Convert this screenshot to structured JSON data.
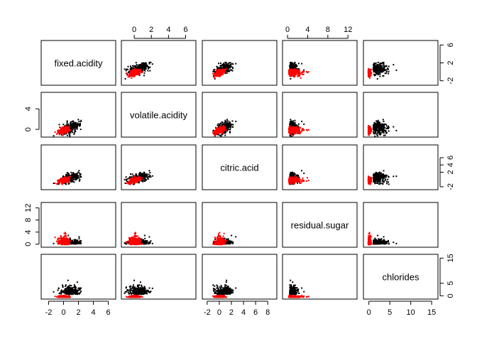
{
  "chart_data": {
    "type": "scatter",
    "variables": [
      "fixed.acidity",
      "volatile.acidity",
      "citric.acid",
      "residual.sugar",
      "chlorides"
    ],
    "ranges": {
      "fixed.acidity": [
        -3.0,
        7.0
      ],
      "volatile.acidity": [
        -1.5,
        7.2
      ],
      "citric.acid": [
        -2.8,
        9.5
      ],
      "residual.sugar": [
        -1.0,
        13.8
      ],
      "chlorides": [
        -1.3,
        16.5
      ]
    },
    "ticks": {
      "fixed.acidity": [
        "-2",
        "0",
        "2",
        "4",
        "6"
      ],
      "volatile.acidity": [
        "0",
        "2",
        "4",
        "6"
      ],
      "citric.acid": [
        "-2",
        "0",
        "2",
        "4",
        "6",
        "8"
      ],
      "residual.sugar": [
        "0",
        "4",
        "8",
        "12"
      ],
      "chlorides": [
        "0",
        "5",
        "10",
        "15"
      ]
    },
    "axes": {
      "bottom": [
        {
          "var": "fixed.acidity",
          "ticks": [
            "-2",
            "0",
            "2",
            "4",
            "6"
          ]
        },
        {
          "var": "citric.acid",
          "ticks": [
            "-2",
            "0",
            "2",
            "4",
            "6",
            "8"
          ]
        },
        {
          "var": "chlorides",
          "ticks": [
            "0",
            "5",
            "10",
            "15"
          ]
        }
      ],
      "top": [
        {
          "var": "volatile.acidity",
          "ticks": [
            "0",
            "2",
            "4",
            "6"
          ]
        },
        {
          "var": "residual.sugar",
          "ticks": [
            "0",
            "4",
            "8",
            "12"
          ]
        }
      ],
      "left": [
        {
          "var": "volatile.acidity",
          "ticks": [
            "0",
            "4"
          ]
        },
        {
          "var": "residual.sugar",
          "ticks": [
            "0",
            "4",
            "8",
            "12"
          ]
        }
      ],
      "right": [
        {
          "var": "fixed.acidity",
          "ticks": [
            "-2",
            "2",
            "6"
          ]
        },
        {
          "var": "citric.acid",
          "ticks": [
            "-2",
            "2",
            "4",
            "6"
          ]
        },
        {
          "var": "chlorides",
          "ticks": [
            "0",
            "5",
            "15"
          ]
        }
      ]
    },
    "series": [
      {
        "color": "#000000",
        "n_points": 220,
        "center": [
          0.8,
          0.4,
          0.6,
          0.6,
          1.2
        ],
        "spread": [
          1.6,
          1.7,
          1.7,
          1.0,
          2.4
        ]
      },
      {
        "color": "#ff0000",
        "n_points": 260,
        "center": [
          0.0,
          0.0,
          0.0,
          0.4,
          0.0
        ],
        "spread": [
          0.9,
          0.8,
          0.9,
          1.8,
          0.4
        ]
      }
    ],
    "grid": false,
    "legend": "none"
  }
}
